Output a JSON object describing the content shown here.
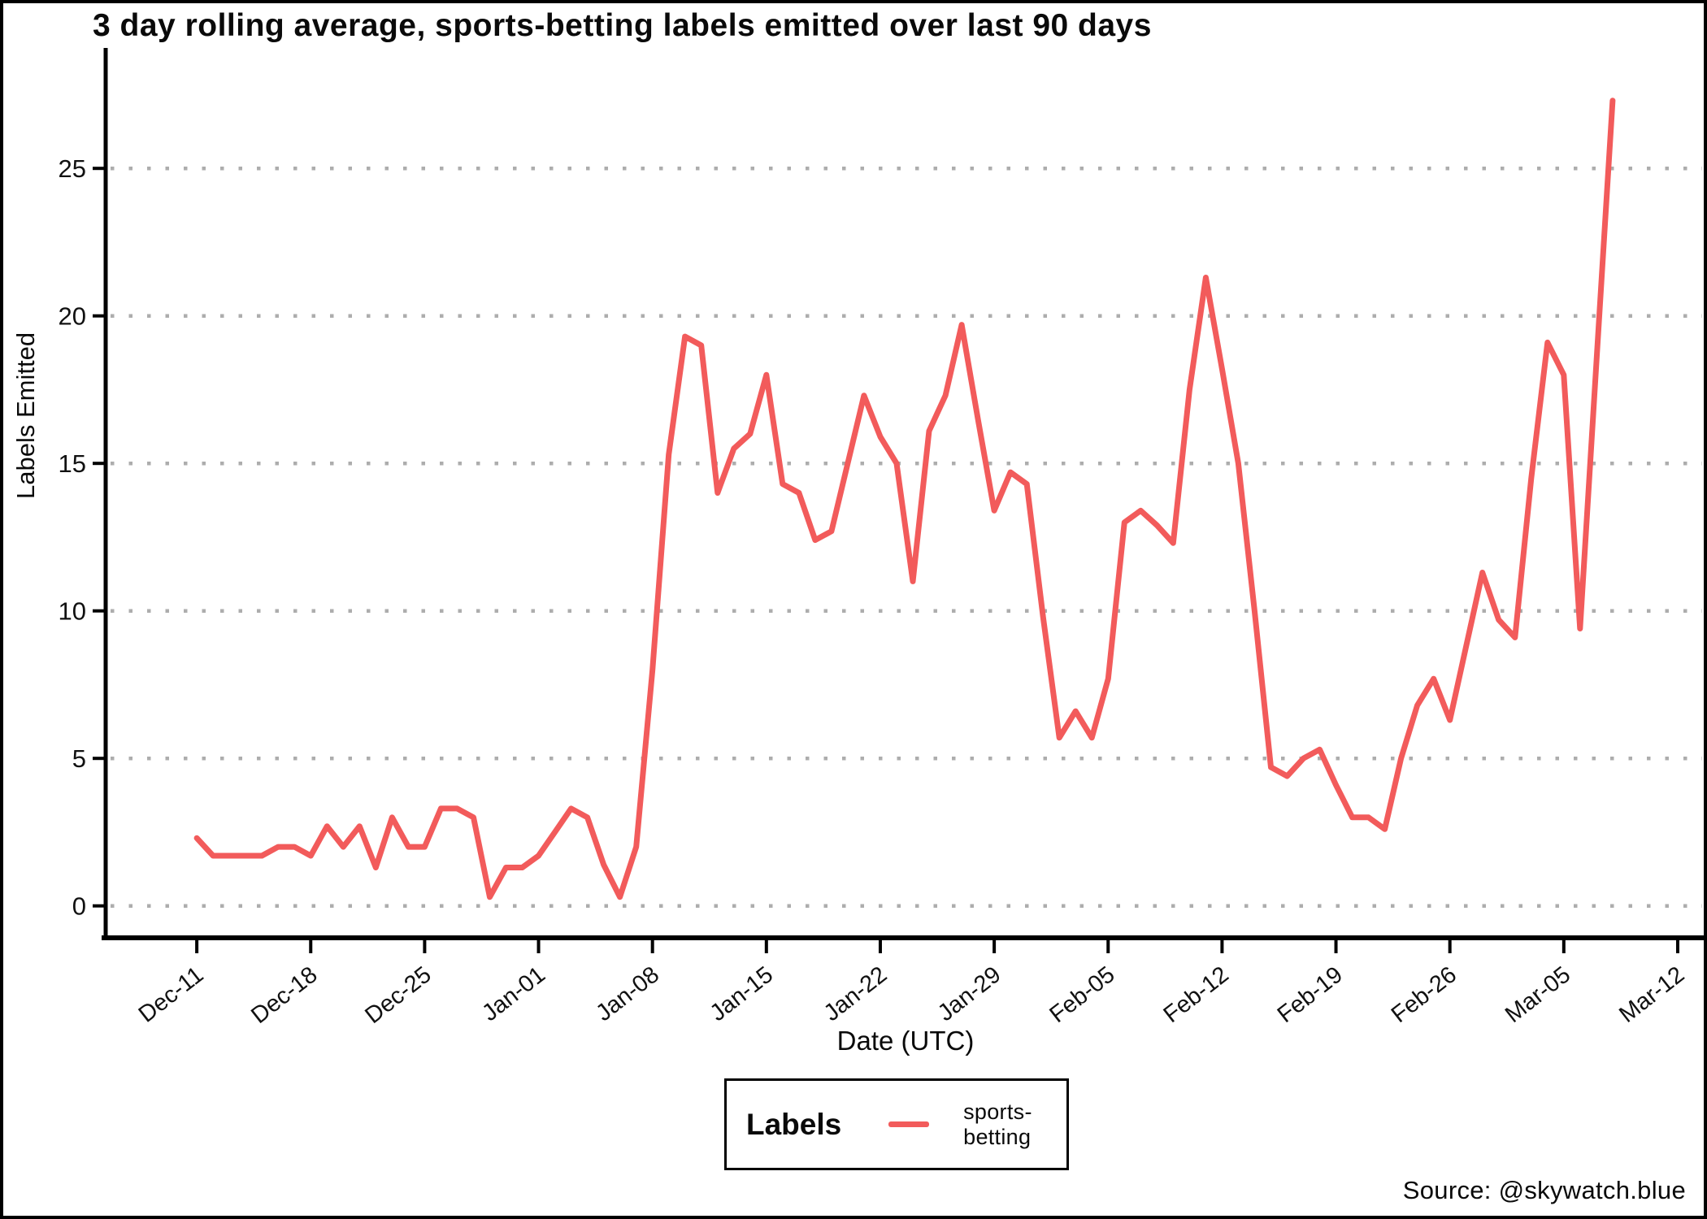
{
  "title": "3 day rolling average, sports-betting labels emitted over last 90 days",
  "axes": {
    "x_label": "Date (UTC)",
    "y_label": "Labels Emitted"
  },
  "legend": {
    "title": "Labels",
    "series_label": "sports-betting"
  },
  "source": "Source: @skywatch.blue",
  "colors": {
    "line": "#F25B5B",
    "grid_dots": "#ADADAD",
    "axis": "#000000",
    "background": "#FFFFFF"
  },
  "chart_data": {
    "type": "line",
    "title": "3 day rolling average, sports-betting labels emitted over last 90 days",
    "xlabel": "Date (UTC)",
    "ylabel": "Labels Emitted",
    "grid": "horizontal-dotted",
    "legend_position": "bottom-center",
    "x_start_date": "Dec-11",
    "x_unit": "day",
    "xlim": [
      -5.5,
      92.5
    ],
    "ylim": [
      -1,
      29
    ],
    "y_ticks": [
      0,
      5,
      10,
      15,
      20,
      25
    ],
    "x_ticks": [
      {
        "day": 0,
        "label": "Dec-11"
      },
      {
        "day": 7,
        "label": "Dec-18"
      },
      {
        "day": 14,
        "label": "Dec-25"
      },
      {
        "day": 21,
        "label": "Jan-01"
      },
      {
        "day": 28,
        "label": "Jan-08"
      },
      {
        "day": 35,
        "label": "Jan-15"
      },
      {
        "day": 42,
        "label": "Jan-22"
      },
      {
        "day": 49,
        "label": "Jan-29"
      },
      {
        "day": 56,
        "label": "Feb-05"
      },
      {
        "day": 63,
        "label": "Feb-12"
      },
      {
        "day": 70,
        "label": "Feb-19"
      },
      {
        "day": 77,
        "label": "Feb-26"
      },
      {
        "day": 84,
        "label": "Mar-05"
      },
      {
        "day": 91,
        "label": "Mar-12"
      }
    ],
    "series": [
      {
        "name": "sports-betting",
        "color": "#F25B5B",
        "x_is_day_index": true,
        "values": [
          2.3,
          1.7,
          1.7,
          1.7,
          1.7,
          2.0,
          2.0,
          1.7,
          2.7,
          2.0,
          2.7,
          1.3,
          3.0,
          2.0,
          2.0,
          3.3,
          3.3,
          3.0,
          0.3,
          1.3,
          1.3,
          1.7,
          2.5,
          3.3,
          3.0,
          1.4,
          0.3,
          2.0,
          8.0,
          15.3,
          19.3,
          19.0,
          14.0,
          15.5,
          16.0,
          18.0,
          14.3,
          14.0,
          12.4,
          12.7,
          15.0,
          17.3,
          15.9,
          15.0,
          11.0,
          16.1,
          17.3,
          19.7,
          16.5,
          13.4,
          14.7,
          14.3,
          9.8,
          5.7,
          6.6,
          5.7,
          7.7,
          13.0,
          13.4,
          12.9,
          12.3,
          17.5,
          21.3,
          18.2,
          15.0,
          10.0,
          4.7,
          4.4,
          5.0,
          5.3,
          4.1,
          3.0,
          3.0,
          2.6,
          5.0,
          6.8,
          7.7,
          6.3,
          8.8,
          11.3,
          9.7,
          9.1,
          14.5,
          19.1,
          18.0,
          9.4,
          18.4,
          27.3
        ]
      }
    ]
  }
}
